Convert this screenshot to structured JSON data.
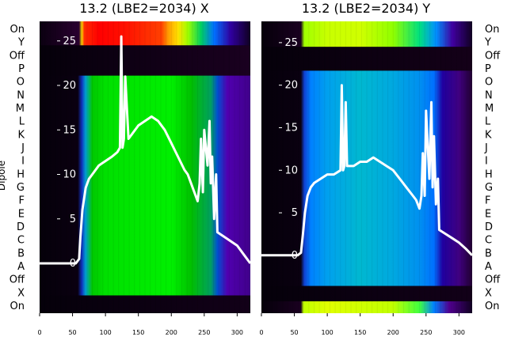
{
  "chart_data": [
    {
      "type": "heatmap",
      "title": "13.2 (LBE2=2034) X",
      "ylabel": "Dipole",
      "row_labels": [
        "On",
        "Y",
        "Off",
        "P",
        "O",
        "N",
        "M",
        "L",
        "K",
        "J",
        "I",
        "H",
        "G",
        "F",
        "E",
        "D",
        "C",
        "B",
        "A",
        "Off",
        "X",
        "On"
      ],
      "x_ticks": [
        0,
        50,
        100,
        150,
        200,
        250,
        300
      ],
      "xlim": [
        0,
        320
      ],
      "y_ticks": [
        0,
        5,
        10,
        15,
        20,
        25
      ],
      "ylim": [
        -5.6,
        27.2
      ],
      "band_color_scale": "nipy_spectral",
      "bands": [
        {
          "label": "top On",
          "y0": 24.5,
          "y1": 27.2,
          "colors": [
            [
              0,
              "#0a0010"
            ],
            [
              60,
              "#2a0030"
            ],
            [
              64,
              "#ffd400"
            ],
            [
              68,
              "#ff2a00"
            ],
            [
              90,
              "#ff0000"
            ],
            [
              130,
              "#ff1000"
            ],
            [
              185,
              "#ff4000"
            ],
            [
              195,
              "#ff9a00"
            ],
            [
              210,
              "#ffe000"
            ],
            [
              225,
              "#9fff00"
            ],
            [
              245,
              "#00d060"
            ],
            [
              265,
              "#0070ff"
            ],
            [
              290,
              "#3000a0"
            ],
            [
              320,
              "#100020"
            ]
          ]
        },
        {
          "label": "Y and Off",
          "y0": 21.1,
          "y1": 24.5,
          "colors": [
            [
              0,
              "#05000a"
            ],
            [
              320,
              "#1a0020"
            ]
          ]
        },
        {
          "label": "P to A",
          "y0": -3.6,
          "y1": 21.1,
          "colors": [
            [
              0,
              "#05000a"
            ],
            [
              58,
              "#0a0010"
            ],
            [
              64,
              "#1030c0"
            ],
            [
              70,
              "#00a0d0"
            ],
            [
              80,
              "#00c800"
            ],
            [
              100,
              "#00e000"
            ],
            [
              200,
              "#00f000"
            ],
            [
              230,
              "#00c000"
            ],
            [
              260,
              "#00a060"
            ],
            [
              270,
              "#0050d0"
            ],
            [
              285,
              "#5000b0"
            ],
            [
              320,
              "#40008a"
            ]
          ]
        },
        {
          "label": "lower Off",
          "y0": -5.6,
          "y1": -3.6,
          "colors": [
            [
              0,
              "#05000a"
            ],
            [
              320,
              "#120018"
            ]
          ]
        }
      ],
      "series": [
        {
          "x": [
            0,
            55,
            60,
            62,
            65,
            70,
            75,
            80,
            90,
            100,
            110,
            118,
            122,
            124,
            126,
            128,
            130,
            135,
            140,
            150,
            160,
            170,
            180,
            190,
            200,
            210,
            220,
            225,
            230,
            235,
            240,
            243,
            245,
            248,
            250,
            255,
            258,
            260,
            262,
            265,
            268,
            270,
            280,
            290,
            300,
            310,
            320
          ],
          "y": [
            0,
            0,
            0.5,
            3,
            6,
            8.5,
            9.5,
            10,
            11,
            11.5,
            12,
            12.5,
            13,
            25.5,
            13,
            14,
            21,
            14,
            14.5,
            15.5,
            16,
            16.5,
            16,
            15,
            13.5,
            12,
            10.5,
            10,
            9,
            8,
            7,
            9,
            14,
            8,
            15,
            11,
            16,
            9,
            12,
            5,
            10,
            3.5,
            3,
            2.5,
            2,
            1,
            0
          ]
        }
      ]
    },
    {
      "type": "heatmap",
      "title": "13.2 (LBE2=2034) Y",
      "row_labels": [
        "On",
        "Y",
        "Off",
        "P",
        "O",
        "N",
        "M",
        "L",
        "K",
        "J",
        "I",
        "H",
        "G",
        "F",
        "E",
        "D",
        "C",
        "B",
        "A",
        "Off",
        "X",
        "On"
      ],
      "x_ticks": [
        0,
        50,
        100,
        150,
        200,
        250,
        300
      ],
      "xlim": [
        0,
        320
      ],
      "y_ticks": [
        0,
        5,
        10,
        15,
        20,
        25
      ],
      "ylim": [
        -6.8,
        27.5
      ],
      "band_color_scale": "nipy_spectral",
      "bands": [
        {
          "label": "top On",
          "y0": 24.5,
          "y1": 27.5,
          "colors": [
            [
              0,
              "#05000a"
            ],
            [
              60,
              "#1a0020"
            ],
            [
              65,
              "#a0ff00"
            ],
            [
              100,
              "#c8ff00"
            ],
            [
              150,
              "#d0ff00"
            ],
            [
              200,
              "#90ff00"
            ],
            [
              240,
              "#00e080"
            ],
            [
              265,
              "#0090ff"
            ],
            [
              290,
              "#4000a0"
            ],
            [
              320,
              "#100020"
            ]
          ]
        },
        {
          "label": "Y and Off",
          "y0": 21.7,
          "y1": 24.5,
          "colors": [
            [
              0,
              "#05000a"
            ],
            [
              320,
              "#140018"
            ]
          ]
        },
        {
          "label": "P to A",
          "y0": -3.6,
          "y1": 21.7,
          "colors": [
            [
              0,
              "#05000a"
            ],
            [
              60,
              "#0a0010"
            ],
            [
              65,
              "#1040d0"
            ],
            [
              75,
              "#0080ff"
            ],
            [
              100,
              "#00a0ee"
            ],
            [
              150,
              "#00b8d0"
            ],
            [
              200,
              "#00a8e0"
            ],
            [
              240,
              "#0090f0"
            ],
            [
              262,
              "#0070ff"
            ],
            [
              275,
              "#2000a0"
            ],
            [
              300,
              "#400080"
            ],
            [
              320,
              "#200030"
            ]
          ]
        },
        {
          "label": "lower Off",
          "y0": -5.4,
          "y1": -3.6,
          "colors": [
            [
              0,
              "#05000a"
            ],
            [
              320,
              "#120018"
            ]
          ]
        },
        {
          "label": "bottom On",
          "y0": -6.8,
          "y1": -5.4,
          "colors": [
            [
              0,
              "#05000a"
            ],
            [
              60,
              "#1a0020"
            ],
            [
              64,
              "#c0ff00"
            ],
            [
              100,
              "#e0ff00"
            ],
            [
              200,
              "#c0ff00"
            ],
            [
              240,
              "#40ff40"
            ],
            [
              262,
              "#0080ff"
            ],
            [
              285,
              "#500090"
            ],
            [
              320,
              "#100020"
            ]
          ]
        }
      ],
      "series": [
        {
          "x": [
            0,
            55,
            60,
            63,
            66,
            70,
            75,
            80,
            90,
            100,
            110,
            120,
            122,
            124,
            126,
            128,
            130,
            140,
            150,
            160,
            170,
            180,
            190,
            200,
            210,
            220,
            230,
            235,
            240,
            243,
            245,
            248,
            250,
            255,
            258,
            260,
            262,
            265,
            268,
            270,
            280,
            290,
            300,
            310,
            320
          ],
          "y": [
            0,
            0,
            0.3,
            2.5,
            5,
            7,
            8,
            8.5,
            9,
            9.5,
            9.5,
            10,
            20,
            10,
            10.5,
            18,
            10.5,
            10.5,
            11,
            11,
            11.5,
            11,
            10.5,
            10,
            9,
            8,
            7,
            6.5,
            5.5,
            7,
            12,
            7,
            17,
            9,
            18,
            8,
            14,
            6,
            9,
            3,
            2.5,
            2,
            1.5,
            0.8,
            0
          ]
        }
      ]
    }
  ]
}
